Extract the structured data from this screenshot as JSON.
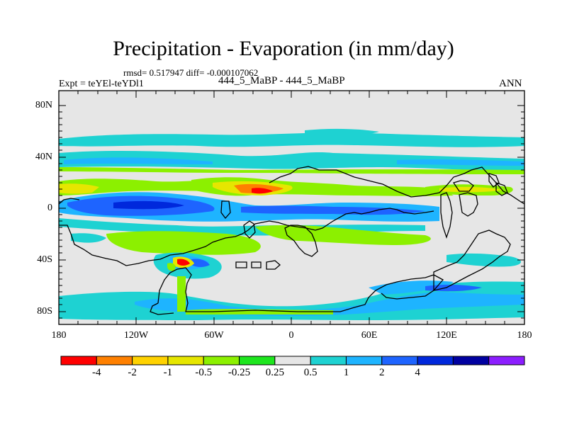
{
  "title": "Precipitation - Evaporation (in mm/day)",
  "stats_line": "rmsd= 0.517947 diff= -0.000107062",
  "experiment_label": "Expt = teYEl-teYDl1",
  "case_label": "444_5_MaBP - 444_5_MaBP",
  "season_label": "ANN",
  "axes": {
    "lat_ticks": [
      "80N",
      "40N",
      "0",
      "40S",
      "80S"
    ],
    "lon_ticks": [
      "180",
      "120W",
      "60W",
      "0",
      "60E",
      "120E",
      "180"
    ]
  },
  "colorbar": {
    "labels": [
      "-4",
      "-2",
      "-1",
      "-0.5",
      "-0.25",
      "0.25",
      "0.5",
      "1",
      "2",
      "4"
    ],
    "colors": [
      "#ff0000",
      "#ff8000",
      "#ffd200",
      "#e6e600",
      "#8cf000",
      "#1ee61e",
      "#e6e6e6",
      "#1ed2d2",
      "#1eb4ff",
      "#1e64ff",
      "#0028dc",
      "#0000a0",
      "#8c1eff"
    ]
  }
}
